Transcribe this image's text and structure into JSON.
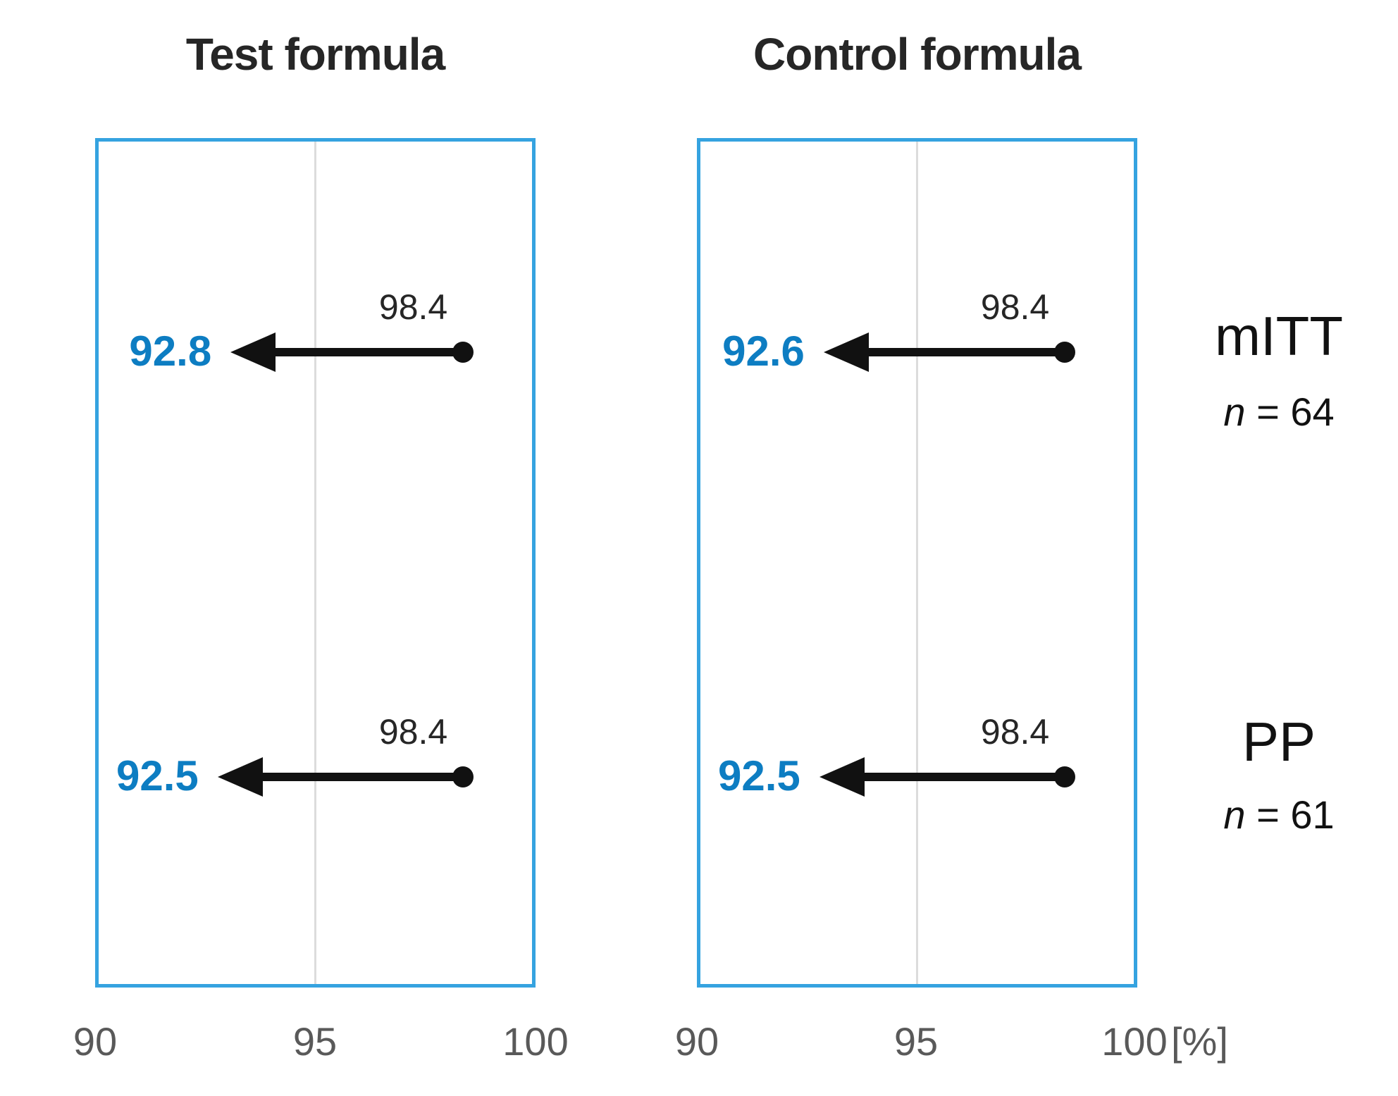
{
  "chart_data": {
    "type": "scatter",
    "variant": "horizontal-arrow-change",
    "xlabel": "[%]",
    "x_axis": {
      "min": 90,
      "max": 100,
      "ticks": [
        "90",
        "95",
        "100"
      ],
      "gridline_at": 95,
      "grid": true
    },
    "panels": [
      {
        "title": "Test formula",
        "rows": [
          {
            "group": "mITT",
            "from": 98.4,
            "to": 92.8,
            "from_label": "98.4",
            "to_label": "92.8"
          },
          {
            "group": "PP",
            "from": 98.4,
            "to": 92.5,
            "from_label": "98.4",
            "to_label": "92.5"
          }
        ]
      },
      {
        "title": "Control formula",
        "rows": [
          {
            "group": "mITT",
            "from": 98.4,
            "to": 92.6,
            "from_label": "98.4",
            "to_label": "92.6"
          },
          {
            "group": "PP",
            "from": 98.4,
            "to": 92.5,
            "from_label": "98.4",
            "to_label": "92.5"
          }
        ]
      }
    ],
    "row_groups": [
      {
        "label": "mITT",
        "n_var": "n",
        "n_rest": " = 64"
      },
      {
        "label": "PP",
        "n_var": "n",
        "n_rest": " = 61"
      }
    ],
    "colors": {
      "panel_border": "#35a3e0",
      "value_text": "#0d7dc2",
      "arrow": "#111111",
      "gridline": "#dcdcdc",
      "title_text": "#262626",
      "tick_text": "#595959",
      "group_text": "#111111"
    }
  }
}
